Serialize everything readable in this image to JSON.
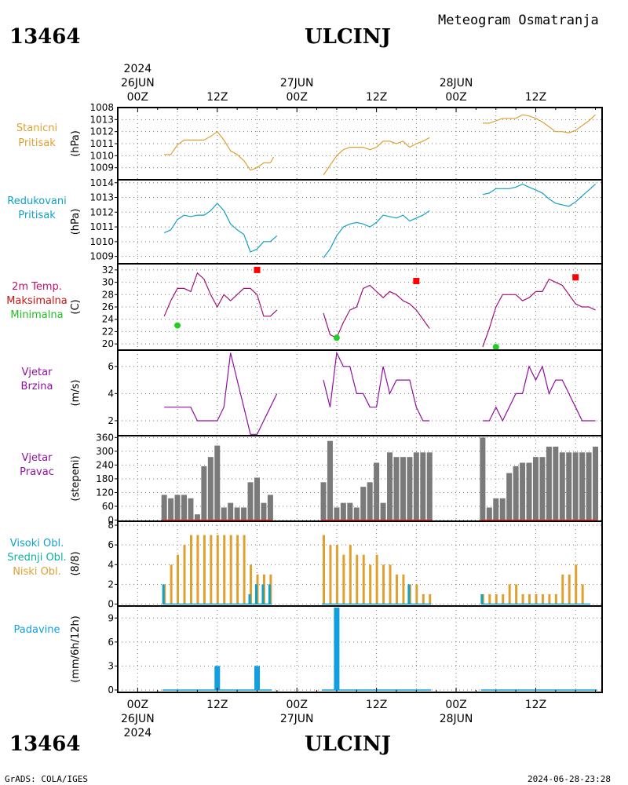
{
  "station_id": "13464",
  "station_name": "ULCINJ",
  "subtitle": "Meteogram Osmatranja",
  "footer_left": "GrADS: COLA/IGES",
  "footer_right": "2024-06-28-23:28",
  "colors": {
    "pressure": "#e0a030",
    "reduced": "#10a0c8",
    "temp": "#a0107a",
    "tmax": "#ff0000",
    "tmin": "#20d020",
    "wind": "#9010a0",
    "bars": "#7a7a7a",
    "high_cloud": "#10a0c8",
    "mid_cloud": "#10b0a0",
    "low_cloud": "#e0a030",
    "precip": "#10a0e0"
  },
  "time_axis": {
    "top_labels": [
      {
        "x": 0,
        "year": "2024",
        "date": "26JUN",
        "hour": "00Z"
      },
      {
        "x": 12,
        "hour": "12Z"
      },
      {
        "x": 24,
        "date": "27JUN",
        "hour": "00Z"
      },
      {
        "x": 36,
        "hour": "12Z"
      },
      {
        "x": 48,
        "date": "28JUN",
        "hour": "00Z"
      },
      {
        "x": 60,
        "hour": "12Z"
      }
    ],
    "bottom_labels": [
      {
        "x": 0,
        "hour": "00Z",
        "date": "26JUN",
        "year": "2024"
      },
      {
        "x": 12,
        "hour": "12Z"
      },
      {
        "x": 24,
        "hour": "00Z",
        "date": "27JUN"
      },
      {
        "x": 36,
        "hour": "12Z"
      },
      {
        "x": 48,
        "hour": "00Z",
        "date": "28JUN"
      },
      {
        "x": 60,
        "hour": "12Z"
      }
    ],
    "xmin": -3,
    "xmax": 70
  },
  "chart_data": [
    {
      "type": "line",
      "panel": "pressure",
      "labels": [
        "Stanicni",
        "Pritisak"
      ],
      "ylabel": "(hPa)",
      "ylim": [
        1008,
        1014
      ],
      "yticks": [
        1009,
        1010,
        1011,
        1012,
        1013
      ],
      "top_tick_label": "1008",
      "grid": true,
      "series": [
        {
          "x": [
            4,
            5,
            6,
            7,
            8,
            9,
            10,
            11,
            12,
            13,
            14,
            15,
            16,
            17,
            18,
            19,
            20
          ],
          "y": [
            1010.1,
            1010.1,
            1010.9,
            1011.3,
            1011.3,
            1011.3,
            1011.3,
            1011.6,
            1012.0,
            1011.3,
            1010.4,
            1010.1,
            1009.6,
            1008.8,
            1009.0,
            1009.4,
            1009.4
          ]
        },
        {
          "x": [
            20,
            20.5
          ],
          "y": [
            1009.4,
            1009.9
          ]
        },
        {
          "x": [
            28,
            29,
            30,
            31,
            32,
            33,
            34,
            35,
            36,
            37,
            38,
            39,
            40,
            41,
            42,
            43,
            44
          ],
          "y": [
            1008.4,
            1009.2,
            1010.0,
            1010.5,
            1010.7,
            1010.7,
            1010.7,
            1010.5,
            1010.7,
            1011.2,
            1011.2,
            1011.0,
            1011.2,
            1010.7,
            1011.0,
            1011.2,
            1011.5
          ]
        },
        {
          "x": [
            52,
            53,
            54,
            55,
            56,
            57,
            58,
            59,
            60,
            61,
            62,
            63,
            64,
            65,
            66,
            67,
            68,
            69
          ],
          "y": [
            1012.7,
            1012.7,
            1012.9,
            1013.1,
            1013.1,
            1013.1,
            1013.4,
            1013.3,
            1013.1,
            1012.8,
            1012.4,
            1012.0,
            1012.0,
            1011.9,
            1012.1,
            1012.5,
            1012.9,
            1013.4
          ]
        }
      ]
    },
    {
      "type": "line",
      "panel": "reduced_pressure",
      "labels": [
        "Redukovani",
        "Pritisak"
      ],
      "ylabel": "(hPa)",
      "ylim": [
        1008.5,
        1014.2
      ],
      "yticks": [
        1009,
        1010,
        1011,
        1012,
        1013,
        1014
      ],
      "grid": true,
      "series": [
        {
          "x": [
            4,
            5,
            6,
            7,
            8,
            9,
            10,
            11,
            12,
            13,
            14,
            15,
            16,
            17,
            18,
            19,
            20,
            21
          ],
          "y": [
            1010.6,
            1010.8,
            1011.5,
            1011.8,
            1011.7,
            1011.8,
            1011.8,
            1012.1,
            1012.6,
            1012.1,
            1011.2,
            1010.8,
            1010.5,
            1009.3,
            1009.5,
            1010.0,
            1010.0,
            1010.4
          ]
        },
        {
          "x": [
            28,
            29,
            30,
            31,
            32,
            33,
            34,
            35,
            36,
            37,
            38,
            39,
            40,
            41,
            42,
            43,
            44
          ],
          "y": [
            1008.9,
            1009.5,
            1010.4,
            1011.0,
            1011.2,
            1011.3,
            1011.2,
            1011.0,
            1011.3,
            1011.8,
            1011.7,
            1011.6,
            1011.8,
            1011.4,
            1011.6,
            1011.8,
            1012.1
          ]
        },
        {
          "x": [
            52,
            53,
            54,
            55,
            56,
            57,
            58,
            59,
            60,
            61,
            62,
            63,
            64,
            65,
            66,
            67,
            68,
            69
          ],
          "y": [
            1013.2,
            1013.3,
            1013.6,
            1013.6,
            1013.6,
            1013.7,
            1013.9,
            1013.7,
            1013.5,
            1013.3,
            1012.9,
            1012.6,
            1012.5,
            1012.4,
            1012.7,
            1013.1,
            1013.5,
            1013.9
          ]
        }
      ]
    },
    {
      "type": "line",
      "panel": "temperature",
      "labels": [
        "2m Temp.",
        "Maksimalna",
        "Minimalna"
      ],
      "ylabel": "(C)",
      "ylim": [
        19,
        33
      ],
      "yticks": [
        20,
        22,
        24,
        26,
        28,
        30,
        32
      ],
      "grid": true,
      "series": [
        {
          "x": [
            4,
            5,
            6,
            7,
            8,
            9,
            10,
            11,
            12,
            13,
            14,
            15,
            16,
            17,
            18,
            19,
            20,
            21
          ],
          "y": [
            24.5,
            27.0,
            29.0,
            29.0,
            28.5,
            31.5,
            30.5,
            28.0,
            26.0,
            28.0,
            27.0,
            28.0,
            29.0,
            29.0,
            28.0,
            24.5,
            24.5,
            25.5
          ]
        },
        {
          "x": [
            28,
            29,
            30,
            31,
            32,
            33,
            34,
            35,
            36,
            37,
            38,
            39,
            40,
            41,
            42,
            43,
            44
          ],
          "y": [
            25.0,
            21.5,
            21.0,
            23.5,
            25.5,
            26.0,
            29.0,
            29.5,
            28.5,
            27.5,
            28.5,
            28.0,
            27.0,
            26.5,
            25.5,
            24.0,
            22.5
          ]
        },
        {
          "x": [
            52,
            53,
            54,
            55,
            56,
            57,
            58,
            59,
            60,
            61,
            62,
            63,
            64,
            65,
            66,
            67,
            68,
            69
          ],
          "y": [
            19.5,
            22.5,
            26.0,
            28.0,
            28.0,
            28.0,
            27.0,
            27.5,
            28.5,
            28.5,
            30.5,
            30.0,
            29.5,
            28.0,
            26.5,
            26.0,
            26.0,
            25.5
          ]
        }
      ],
      "max_points": [
        {
          "x": 18,
          "y": 32.0
        },
        {
          "x": 42,
          "y": 30.2
        },
        {
          "x": 66,
          "y": 30.8
        }
      ],
      "min_points": [
        {
          "x": 6,
          "y": 23.0
        },
        {
          "x": 30,
          "y": 21.0
        },
        {
          "x": 54,
          "y": 19.5
        }
      ]
    },
    {
      "type": "line",
      "panel": "wind_speed",
      "labels": [
        "Vjetar",
        "Brzina"
      ],
      "ylabel": "(m/s)",
      "ylim": [
        0.9,
        7.2
      ],
      "yticks": [
        2,
        4,
        6
      ],
      "grid": true,
      "series": [
        {
          "x": [
            4,
            5,
            6,
            7,
            8,
            9,
            10,
            11,
            12,
            13,
            14,
            15,
            16,
            17,
            18,
            19,
            20,
            21
          ],
          "y": [
            3,
            3,
            3,
            3,
            3,
            2,
            2,
            2,
            2,
            3,
            7,
            5,
            3,
            1,
            1,
            2,
            3,
            4
          ]
        },
        {
          "x": [
            28,
            29,
            30,
            31,
            32,
            33,
            34,
            35,
            36,
            37,
            38,
            39,
            40,
            41,
            42,
            43,
            44
          ],
          "y": [
            5,
            3,
            7,
            6,
            6,
            4,
            4,
            3,
            3,
            6,
            4,
            5,
            5,
            5,
            3,
            2,
            2
          ]
        },
        {
          "x": [
            52,
            53,
            54,
            55,
            56,
            57,
            58,
            59,
            60,
            61,
            62,
            63,
            64,
            65,
            66,
            67,
            68,
            69
          ],
          "y": [
            2,
            2,
            3,
            2,
            3,
            4,
            4,
            6,
            5,
            6,
            4,
            5,
            5,
            4,
            3,
            2,
            2,
            2
          ]
        }
      ]
    },
    {
      "type": "bar",
      "panel": "wind_direction",
      "labels": [
        "Vjetar",
        "Pravac"
      ],
      "ylabel": "(stepeni)",
      "ylim": [
        -5,
        368
      ],
      "yticks": [
        0,
        60,
        120,
        180,
        240,
        300,
        360
      ],
      "grid": true,
      "x": [
        4,
        5,
        6,
        7,
        8,
        9,
        10,
        11,
        12,
        13,
        14,
        15,
        16,
        17,
        18,
        19,
        20,
        28,
        29,
        30,
        31,
        32,
        33,
        34,
        35,
        36,
        37,
        38,
        39,
        40,
        41,
        42,
        43,
        44,
        52,
        53,
        54,
        55,
        56,
        57,
        58,
        59,
        60,
        61,
        62,
        63,
        64,
        65,
        66,
        67,
        68,
        69
      ],
      "values": [
        110,
        95,
        110,
        110,
        95,
        25,
        235,
        275,
        325,
        55,
        75,
        55,
        55,
        165,
        185,
        75,
        110,
        165,
        345,
        55,
        75,
        75,
        55,
        145,
        165,
        250,
        75,
        295,
        275,
        275,
        275,
        295,
        295,
        295,
        360,
        55,
        95,
        95,
        205,
        235,
        250,
        250,
        275,
        275,
        320,
        320,
        295,
        295,
        295,
        295,
        295,
        320
      ]
    },
    {
      "type": "bar",
      "panel": "cloud_cover",
      "labels": [
        "Visoki Obl.",
        "Srednji Obl.",
        "Niski Obl."
      ],
      "ylabel": "(8/8)",
      "ylim": [
        -0.2,
        8.4
      ],
      "yticks": [
        0,
        2,
        4,
        6,
        8
      ],
      "grid": true,
      "x": [
        4,
        5,
        6,
        7,
        8,
        9,
        10,
        11,
        12,
        13,
        14,
        15,
        16,
        17,
        18,
        19,
        20,
        28,
        29,
        30,
        31,
        32,
        33,
        34,
        35,
        36,
        37,
        38,
        39,
        40,
        41,
        42,
        43,
        44,
        52,
        53,
        54,
        55,
        56,
        57,
        58,
        59,
        60,
        61,
        62,
        63,
        64,
        65,
        66,
        67,
        68
      ],
      "series": [
        {
          "name": "Niski Obl.",
          "values": [
            2,
            4,
            5,
            6,
            7,
            7,
            7,
            7,
            7,
            7,
            7,
            7,
            7,
            4,
            3,
            3,
            3,
            7,
            6,
            6,
            5,
            6,
            5,
            5,
            4,
            5,
            4,
            4,
            3,
            3,
            2,
            2,
            1,
            1,
            1,
            1,
            1,
            1,
            2,
            2,
            1,
            1,
            1,
            1,
            1,
            1,
            3,
            3,
            4,
            2,
            0
          ]
        },
        {
          "name": "Visoki Obl.",
          "values": [
            2,
            0,
            0,
            0,
            0,
            0,
            0,
            0,
            0,
            0,
            0,
            0,
            0,
            1,
            2,
            2,
            2,
            0,
            0,
            0,
            0,
            0,
            0,
            0,
            0,
            0,
            0,
            0,
            0,
            0,
            2,
            0,
            0,
            0,
            1,
            0,
            0,
            0,
            0,
            0,
            0,
            0,
            0,
            0,
            0,
            0,
            0,
            0,
            0,
            0,
            0
          ]
        }
      ]
    },
    {
      "type": "bar",
      "panel": "precipitation",
      "labels": [
        "Padavine"
      ],
      "ylabel": "(mm/6h/12h)",
      "ylim": [
        -0.3,
        10.5
      ],
      "yticks": [
        0,
        3,
        6,
        9
      ],
      "grid": true,
      "x": [
        12,
        18,
        30
      ],
      "values": [
        3.0,
        3.0,
        10.3
      ]
    }
  ]
}
